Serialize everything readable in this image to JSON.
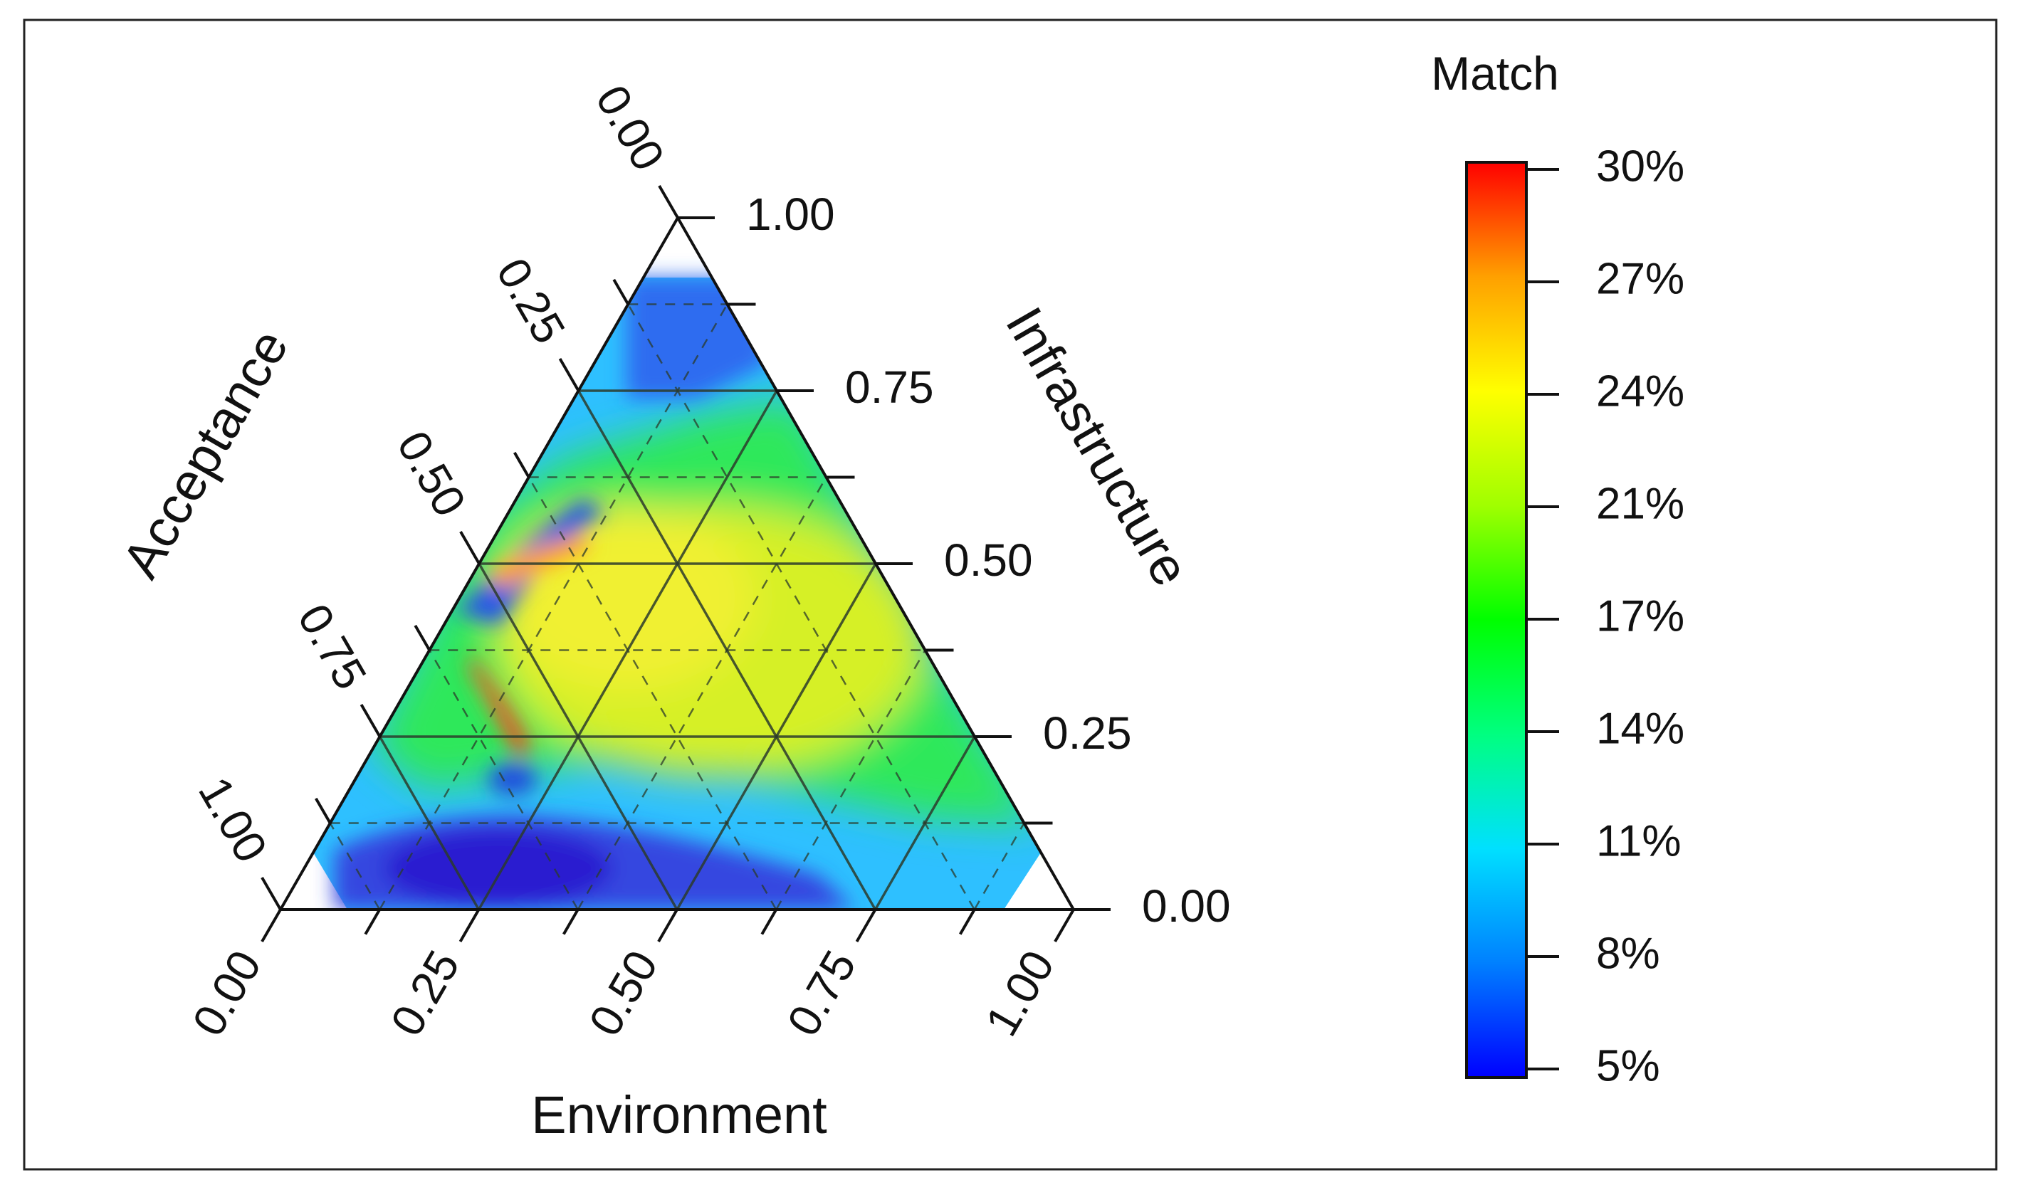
{
  "chart_data": {
    "type": "ternary-contour",
    "axes": {
      "top": {
        "label": "Infrastructure",
        "ticks": [
          "0.00",
          "0.25",
          "0.50",
          "0.75",
          "1.00"
        ]
      },
      "bottom": {
        "label": "Environment",
        "ticks": [
          "0.00",
          "0.25",
          "0.50",
          "0.75",
          "1.00"
        ]
      },
      "left": {
        "label": "Acceptance",
        "ticks": [
          "0.00",
          "0.25",
          "0.50",
          "0.75",
          "1.00"
        ]
      }
    },
    "grid": true,
    "colorbar": {
      "title": "Match",
      "ticks": [
        "5%",
        "8%",
        "11%",
        "14%",
        "17%",
        "21%",
        "24%",
        "27%",
        "30%"
      ],
      "range": [
        5,
        30
      ],
      "colormap": [
        "#0000ff",
        "#0080ff",
        "#00e0ff",
        "#00ff80",
        "#00ff00",
        "#a0ff00",
        "#ffff00",
        "#ffa000",
        "#ff0000"
      ]
    },
    "regions": [
      {
        "name": "bottom-low-band",
        "level": 7
      },
      {
        "name": "upper-cap",
        "level": 8
      },
      {
        "name": "left-edge-low",
        "level": 8
      },
      {
        "name": "green-plateau",
        "level": 17
      },
      {
        "name": "central-high",
        "level": 24
      },
      {
        "name": "ridge-peak",
        "level": 29
      }
    ]
  }
}
